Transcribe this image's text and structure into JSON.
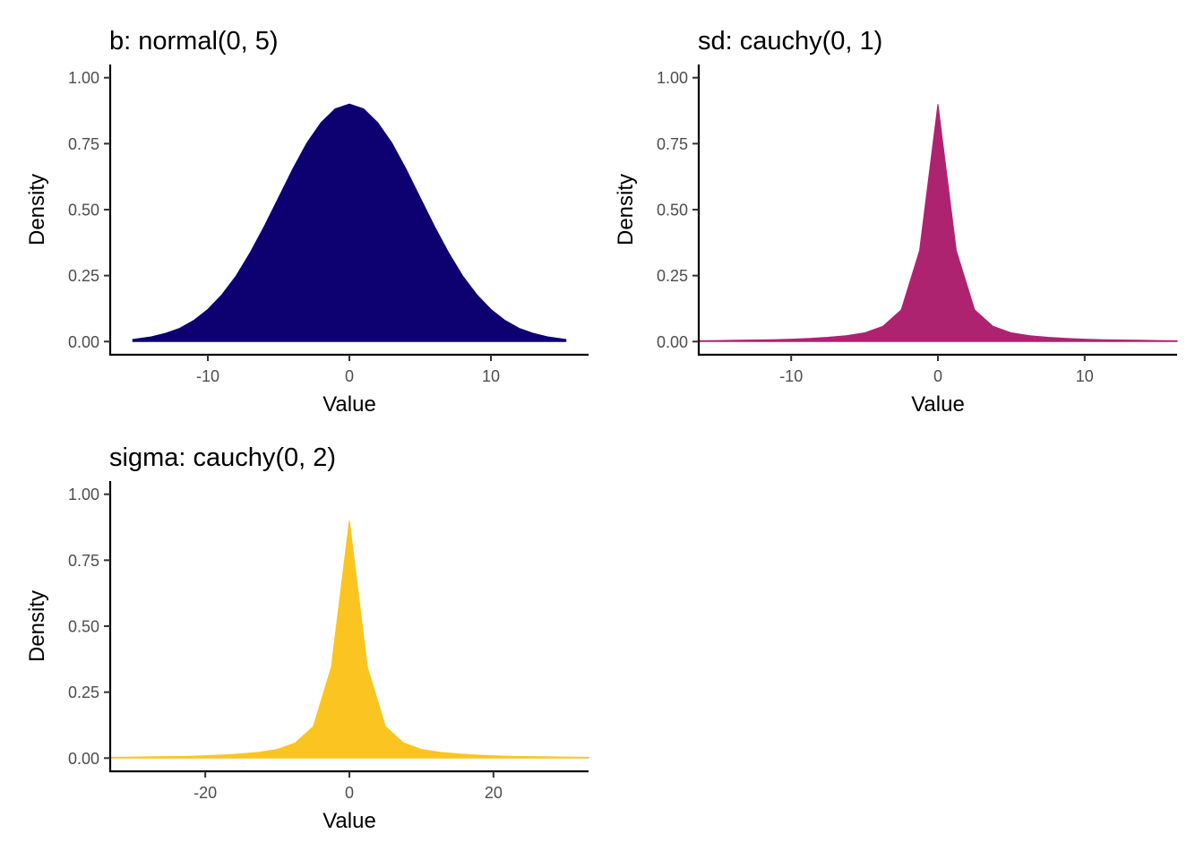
{
  "chart_data": [
    {
      "type": "area",
      "title": "b: normal(0, 5)",
      "xlabel": "Value",
      "ylabel": "Density",
      "xlim": [
        -16.9,
        16.9
      ],
      "ylim": [
        -0.05,
        1.05
      ],
      "x_ticks": [
        -10,
        0,
        10
      ],
      "x_tick_labels": [
        "-10",
        "0",
        "10"
      ],
      "y_ticks": [
        0,
        0.25,
        0.5,
        0.75,
        1
      ],
      "y_tick_labels": [
        "0.00",
        "0.25",
        "0.50",
        "0.75",
        "1.00"
      ],
      "grid": false,
      "legend": "none",
      "fill_color": "#0d0071",
      "series": [
        {
          "x": [
            -15.3,
            -14,
            -13,
            -12,
            -11,
            -10,
            -9,
            -8,
            -7,
            -6,
            -5,
            -4,
            -3,
            -2,
            -1,
            0,
            1,
            2,
            3,
            4,
            5,
            6,
            7,
            8,
            9,
            10,
            11,
            12,
            13,
            14,
            15.3
          ],
          "y": [
            0.008,
            0.018,
            0.031,
            0.05,
            0.08,
            0.122,
            0.178,
            0.249,
            0.338,
            0.438,
            0.546,
            0.654,
            0.753,
            0.83,
            0.882,
            0.9,
            0.882,
            0.83,
            0.753,
            0.654,
            0.546,
            0.438,
            0.338,
            0.249,
            0.178,
            0.122,
            0.08,
            0.05,
            0.031,
            0.018,
            0.008
          ]
        }
      ]
    },
    {
      "type": "area",
      "title": "sd: cauchy(0, 1)",
      "xlabel": "Value",
      "ylabel": "Density",
      "xlim": [
        -16.3,
        16.3
      ],
      "ylim": [
        -0.05,
        1.05
      ],
      "x_ticks": [
        -10,
        0,
        10
      ],
      "x_tick_labels": [
        "-10",
        "0",
        "10"
      ],
      "y_ticks": [
        0,
        0.25,
        0.5,
        0.75,
        1
      ],
      "y_tick_labels": [
        "0.00",
        "0.25",
        "0.50",
        "0.75",
        "1.00"
      ],
      "grid": false,
      "legend": "none",
      "fill_color": "#ae2370",
      "series": [
        {
          "x": [
            -16.3,
            -15,
            -13.75,
            -12.5,
            -11.25,
            -10,
            -8.75,
            -7.5,
            -6.25,
            -5,
            -3.75,
            -2.5,
            -1.25,
            0,
            1.25,
            2.5,
            3.75,
            5,
            6.25,
            7.5,
            8.75,
            10,
            11.25,
            12.5,
            13.75,
            15,
            16.3
          ],
          "y": [
            0.003,
            0.004,
            0.005,
            0.006,
            0.007,
            0.009,
            0.012,
            0.016,
            0.022,
            0.033,
            0.058,
            0.12,
            0.345,
            0.9,
            0.345,
            0.12,
            0.058,
            0.033,
            0.022,
            0.016,
            0.012,
            0.009,
            0.007,
            0.006,
            0.005,
            0.004,
            0.003
          ]
        }
      ]
    },
    {
      "type": "area",
      "title": "sigma: cauchy(0, 2)",
      "xlabel": "Value",
      "ylabel": "Density",
      "xlim": [
        -33.2,
        33.2
      ],
      "ylim": [
        -0.05,
        1.05
      ],
      "x_ticks": [
        -20,
        0,
        20
      ],
      "x_tick_labels": [
        "-20",
        "0",
        "20"
      ],
      "y_ticks": [
        0,
        0.25,
        0.5,
        0.75,
        1
      ],
      "y_tick_labels": [
        "0.00",
        "0.25",
        "0.50",
        "0.75",
        "1.00"
      ],
      "grid": false,
      "legend": "none",
      "fill_color": "#fbc420",
      "series": [
        {
          "x": [
            -33.2,
            -30,
            -27.5,
            -25,
            -22.5,
            -20,
            -17.5,
            -15,
            -12.5,
            -10,
            -7.5,
            -5,
            -2.5,
            0,
            2.5,
            5,
            7.5,
            10,
            12.5,
            15,
            17.5,
            20,
            22.5,
            25,
            27.5,
            30,
            33.2
          ],
          "y": [
            0.003,
            0.004,
            0.005,
            0.006,
            0.007,
            0.009,
            0.012,
            0.016,
            0.022,
            0.033,
            0.058,
            0.12,
            0.345,
            0.9,
            0.345,
            0.12,
            0.058,
            0.033,
            0.022,
            0.016,
            0.012,
            0.009,
            0.007,
            0.006,
            0.005,
            0.004,
            0.003
          ]
        }
      ]
    }
  ]
}
